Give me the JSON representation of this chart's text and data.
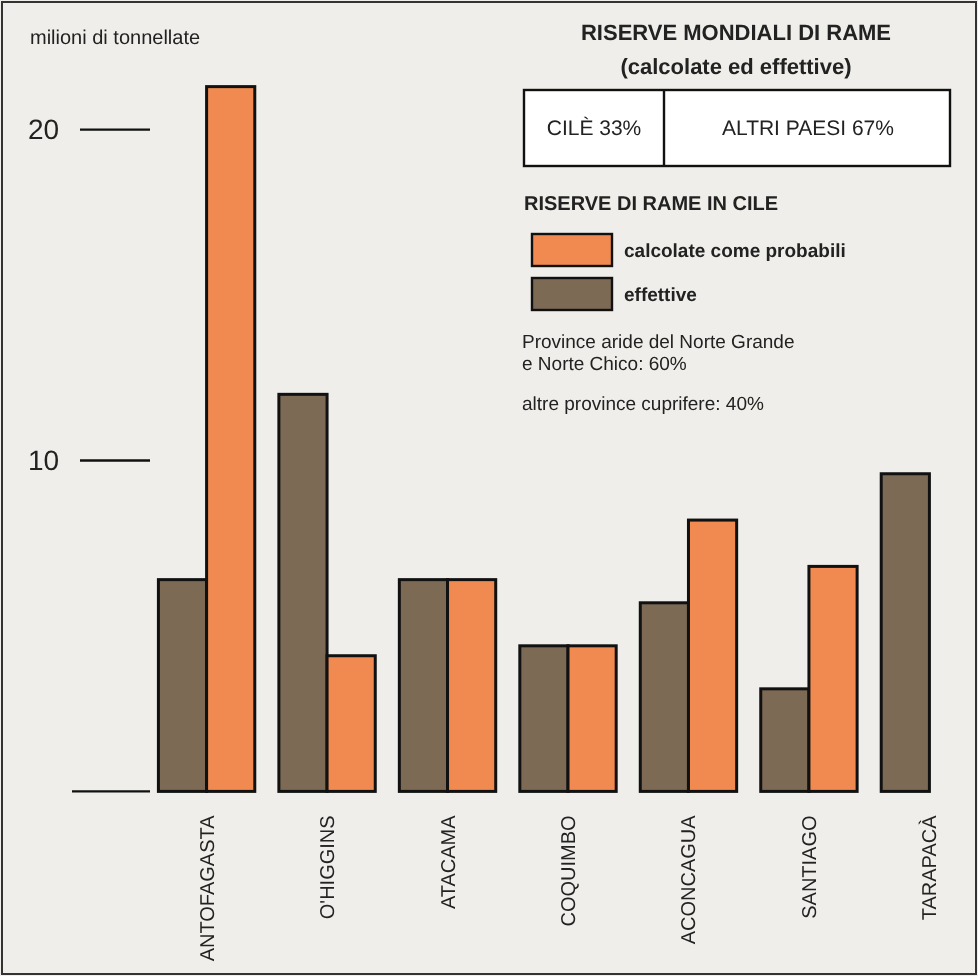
{
  "chart_data": {
    "type": "bar",
    "title": "RISERVE MONDIALI DI RAME",
    "subtitle": "(calcolate ed effettive)",
    "ylabel": "milioni di tonnellate",
    "legend_title": "RISERVE DI RAME IN CILE",
    "categories": [
      "ANTOFAGASTA",
      "O'HIGGINS",
      "ATACAMA",
      "COQUIMBO",
      "ACONCAGUA",
      "SANTIAGO",
      "TARAPACÀ"
    ],
    "series": [
      {
        "name": "effettive",
        "color": "#7d6a55",
        "values": [
          6.4,
          12.0,
          6.4,
          4.4,
          5.7,
          3.1,
          9.6
        ]
      },
      {
        "name": "calcolate come probabili",
        "color": "#f08a50",
        "values": [
          21.3,
          4.1,
          6.4,
          4.4,
          8.2,
          6.8,
          null
        ]
      }
    ],
    "ylim": [
      0,
      21.5
    ],
    "yticks": [
      10,
      20
    ],
    "grid": false,
    "legend": "top right",
    "annotations": [
      "CILÈ 33%",
      "ALTRI PAESI 67%",
      "Province aride del Norte Grande\ne Norte Chico: 60%",
      "altre province cuprifere: 40%"
    ]
  }
}
